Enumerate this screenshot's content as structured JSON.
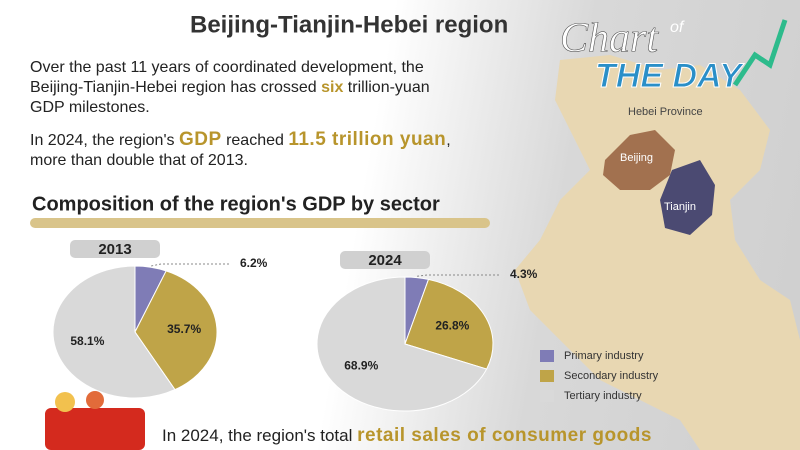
{
  "title": "Beijing-Tianjin-Hebei region",
  "logo": {
    "word": "Chart",
    "of": "of",
    "day": "THE DAY"
  },
  "intro": {
    "part1": "Over the past 11 years of coordinated development, the Beijing-Tianjin-Hebei region has crossed ",
    "highlight": "six",
    "part2": " trillion-yuan GDP milestones."
  },
  "gdp_note": {
    "part1": "In 2024, the region's ",
    "highlight1": "GDP",
    "part2": " reached ",
    "highlight2": "11.5 trillion yuan",
    "part3": ", more than double that of 2013."
  },
  "section_title": "Composition of the region's GDP by sector",
  "map": {
    "province": "Hebei Province",
    "city1": "Beijing",
    "city2": "Tianjin"
  },
  "legend": {
    "categories": [
      "Primary industry",
      "Secondary industry",
      "Tertiary industry"
    ],
    "colors": [
      "#7f7cb6",
      "#bfa448",
      "#d9d9d9"
    ]
  },
  "chart_data": [
    {
      "type": "pie",
      "title": "2013",
      "values": [
        6.2,
        35.7,
        58.1
      ],
      "value_labels": [
        "6.2%",
        "35.7%",
        "58.1%"
      ]
    },
    {
      "type": "pie",
      "title": "2024",
      "values": [
        4.3,
        26.8,
        68.9
      ],
      "value_labels": [
        "4.3%",
        "26.8%",
        "68.9%"
      ]
    }
  ],
  "footer": {
    "part1": "In 2024, the region's total ",
    "highlight": "retail sales of consumer goods"
  }
}
